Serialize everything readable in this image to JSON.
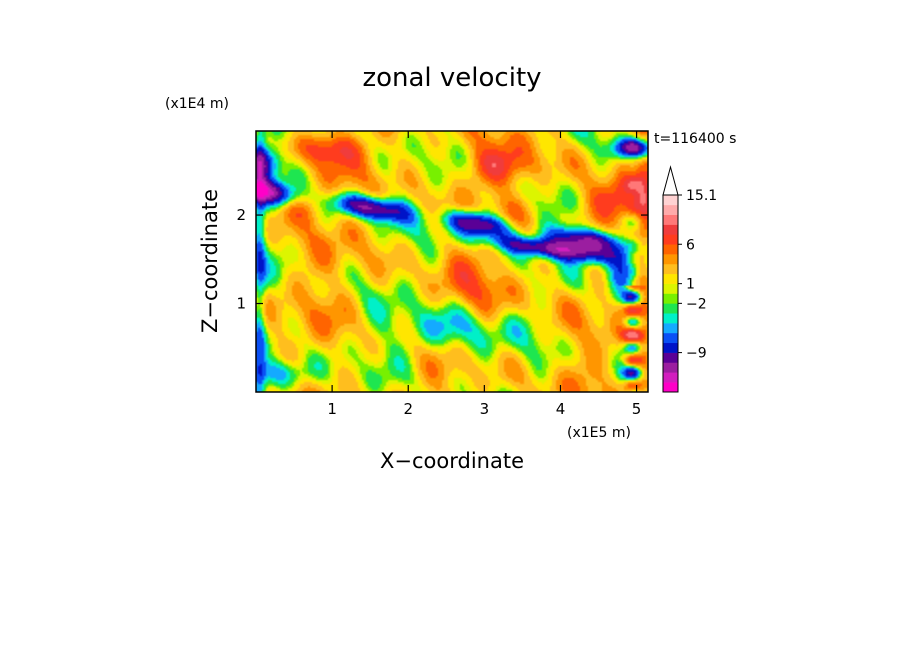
{
  "chart_data": {
    "type": "heatmap",
    "title": "zonal velocity",
    "xlabel": "X−coordinate",
    "ylabel": "Z−coordinate",
    "x_unit": "(x1E5 m)",
    "y_unit": "(x1E4 m)",
    "time_label": "t=116400 s",
    "xlim": [
      0,
      5.15
    ],
    "ylim": [
      0,
      2.95
    ],
    "x_ticks": [
      {
        "value": 1,
        "label": "1"
      },
      {
        "value": 2,
        "label": "2"
      },
      {
        "value": 3,
        "label": "3"
      },
      {
        "value": 4,
        "label": "4"
      },
      {
        "value": 5,
        "label": "5"
      }
    ],
    "y_ticks": [
      {
        "value": 1,
        "label": "1"
      },
      {
        "value": 2,
        "label": "2"
      }
    ],
    "colorbar": {
      "colors": [
        "#ff00c8",
        "#d21ebe",
        "#9b1ea0",
        "#5a0096",
        "#0014c8",
        "#0a50f5",
        "#14aaff",
        "#00f0c8",
        "#1ee650",
        "#78f000",
        "#dcf500",
        "#ffe600",
        "#ffbe1e",
        "#ff9600",
        "#ff6400",
        "#ff3c1e",
        "#f03c3c",
        "#ff7878",
        "#ffaaaa",
        "#ffd2d2"
      ],
      "labels": [
        {
          "level_index": 3,
          "text": "−9"
        },
        {
          "level_index": 8,
          "text": "−2"
        },
        {
          "level_index": 10,
          "text": "1"
        },
        {
          "level_index": 14,
          "text": "6"
        },
        {
          "level_index": 19,
          "text": "15.1"
        }
      ]
    }
  }
}
